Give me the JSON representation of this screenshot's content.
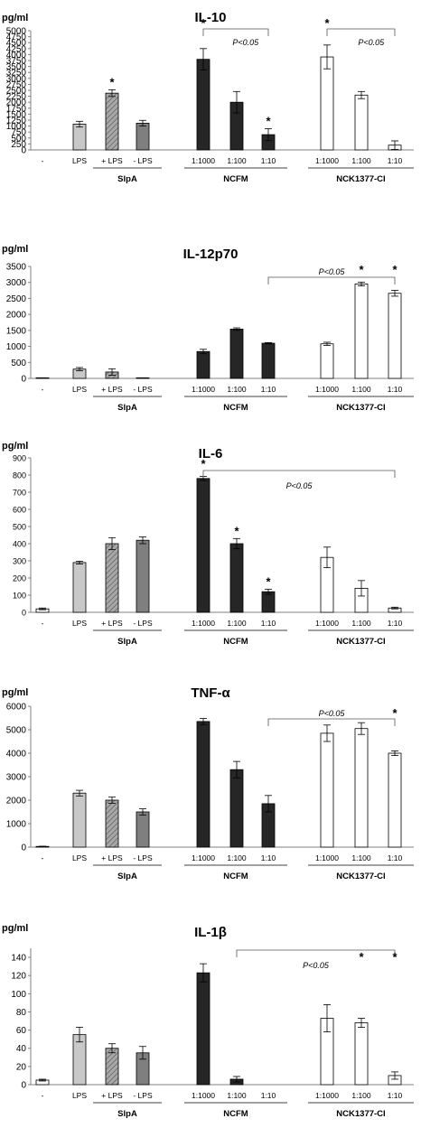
{
  "chart_data": [
    {
      "type": "bar",
      "title": "IL-10",
      "ylabel": "pg/ml",
      "ylim": [
        0,
        5000
      ],
      "yticks": [
        0,
        250,
        500,
        750,
        1000,
        1250,
        1500,
        1750,
        2000,
        2250,
        2500,
        2750,
        3000,
        3250,
        3500,
        3750,
        4000,
        4250,
        4500,
        4750,
        5000
      ],
      "categories": [
        "-",
        "LPS",
        "+ LPS",
        "- LPS",
        "1:1000",
        "1:100",
        "1:10",
        "1:1000",
        "1:100",
        "1:10"
      ],
      "values": [
        0,
        1080,
        2380,
        1120,
        3800,
        2000,
        640,
        3900,
        2300,
        200
      ],
      "errors": [
        0,
        120,
        140,
        120,
        450,
        450,
        250,
        500,
        150,
        180
      ],
      "groups": [
        {
          "label": "SlpA",
          "from": 2,
          "to": 3
        },
        {
          "label": "NCFM",
          "from": 4,
          "to": 6
        },
        {
          "label": "NCK1377-CI",
          "from": 7,
          "to": 9
        }
      ],
      "significance_stars": [
        2,
        6
      ],
      "comparisons": [
        {
          "from": 4,
          "to": 6,
          "label": "P<0.05"
        },
        {
          "from": 7,
          "to": 9,
          "label": "P<0.05"
        }
      ]
    },
    {
      "type": "bar",
      "title": "IL-12p70",
      "ylabel": "pg/ml",
      "ylim": [
        0,
        3500
      ],
      "yticks": [
        0,
        500,
        1000,
        1500,
        2000,
        2500,
        3000,
        3500
      ],
      "categories": [
        "-",
        "LPS",
        "+ LPS",
        "- LPS",
        "1:1000",
        "1:100",
        "1:10",
        "1:1000",
        "1:100",
        "1:10"
      ],
      "values": [
        20,
        290,
        200,
        20,
        840,
        1540,
        1100,
        1080,
        2950,
        2660
      ],
      "errors": [
        0,
        50,
        100,
        0,
        70,
        40,
        20,
        50,
        60,
        90
      ],
      "groups": [
        {
          "label": "SlpA",
          "from": 2,
          "to": 3
        },
        {
          "label": "NCFM",
          "from": 4,
          "to": 6
        },
        {
          "label": "NCK1377-CI",
          "from": 7,
          "to": 9
        }
      ],
      "significance_stars": [
        8,
        9
      ],
      "comparisons": [
        {
          "from": 6,
          "to": 9,
          "label": "P<0.05"
        }
      ]
    },
    {
      "type": "bar",
      "title": "IL-6",
      "ylabel": "pg/ml",
      "ylim": [
        0,
        900
      ],
      "yticks": [
        0,
        100,
        200,
        300,
        400,
        500,
        600,
        700,
        800,
        900
      ],
      "categories": [
        "-",
        "LPS",
        "+ LPS",
        "- LPS",
        "1:1000",
        "1:100",
        "1:10",
        "1:1000",
        "1:100",
        "1:10"
      ],
      "values": [
        20,
        290,
        400,
        420,
        780,
        400,
        120,
        320,
        140,
        25
      ],
      "errors": [
        5,
        8,
        35,
        20,
        12,
        30,
        15,
        60,
        45,
        5
      ],
      "groups": [
        {
          "label": "SlpA",
          "from": 2,
          "to": 3
        },
        {
          "label": "NCFM",
          "from": 4,
          "to": 6
        },
        {
          "label": "NCK1377-CI",
          "from": 7,
          "to": 9
        }
      ],
      "significance_stars": [
        5,
        6
      ],
      "comparisons": [
        {
          "from": 4,
          "to": 9,
          "label": "P<0.05"
        }
      ]
    },
    {
      "type": "bar",
      "title": "TNF-α",
      "ylabel": "pg/ml",
      "ylim": [
        0,
        6000
      ],
      "yticks": [
        0,
        1000,
        2000,
        3000,
        4000,
        5000,
        6000
      ],
      "categories": [
        "-",
        "LPS",
        "+ LPS",
        "- LPS",
        "1:1000",
        "1:100",
        "1:10",
        "1:1000",
        "1:100",
        "1:10"
      ],
      "values": [
        30,
        2300,
        2000,
        1500,
        5350,
        3300,
        1850,
        4850,
        5050,
        4000
      ],
      "errors": [
        10,
        120,
        130,
        130,
        130,
        350,
        350,
        350,
        250,
        100
      ],
      "groups": [
        {
          "label": "SlpA",
          "from": 2,
          "to": 3
        },
        {
          "label": "NCFM",
          "from": 4,
          "to": 6
        },
        {
          "label": "NCK1377-CI",
          "from": 7,
          "to": 9
        }
      ],
      "significance_stars": [
        9
      ],
      "comparisons": [
        {
          "from": 6,
          "to": 9,
          "label": "P<0.05"
        }
      ]
    },
    {
      "type": "bar",
      "title": "IL-1β",
      "ylabel": "pg/ml",
      "ylim": [
        0,
        150
      ],
      "yticks": [
        0,
        20,
        40,
        60,
        80,
        100,
        120,
        140
      ],
      "categories": [
        "-",
        "LPS",
        "+ LPS",
        "- LPS",
        "1:1000",
        "1:100",
        "1:10",
        "1:1000",
        "1:100",
        "1:10"
      ],
      "values": [
        5,
        55,
        40,
        35,
        123,
        6,
        0,
        73,
        68,
        10
      ],
      "errors": [
        1,
        8,
        5,
        7,
        10,
        3,
        0,
        15,
        5,
        4
      ],
      "groups": [
        {
          "label": "SlpA",
          "from": 2,
          "to": 3
        },
        {
          "label": "NCFM",
          "from": 4,
          "to": 6
        },
        {
          "label": "NCK1377-CI",
          "from": 7,
          "to": 9
        }
      ],
      "significance_stars": [
        8,
        9
      ],
      "comparisons": [
        {
          "from": 5,
          "to": 9,
          "label": "P<0.05"
        }
      ]
    }
  ],
  "colors": {
    "control": "#ffffff",
    "lps": "#c8c8c8",
    "slpa_plus": "#a8a8a8",
    "slpa_minus": "#7f7f7f",
    "ncfm": "#262626",
    "nck": "#ffffff",
    "axis": "#808080"
  }
}
